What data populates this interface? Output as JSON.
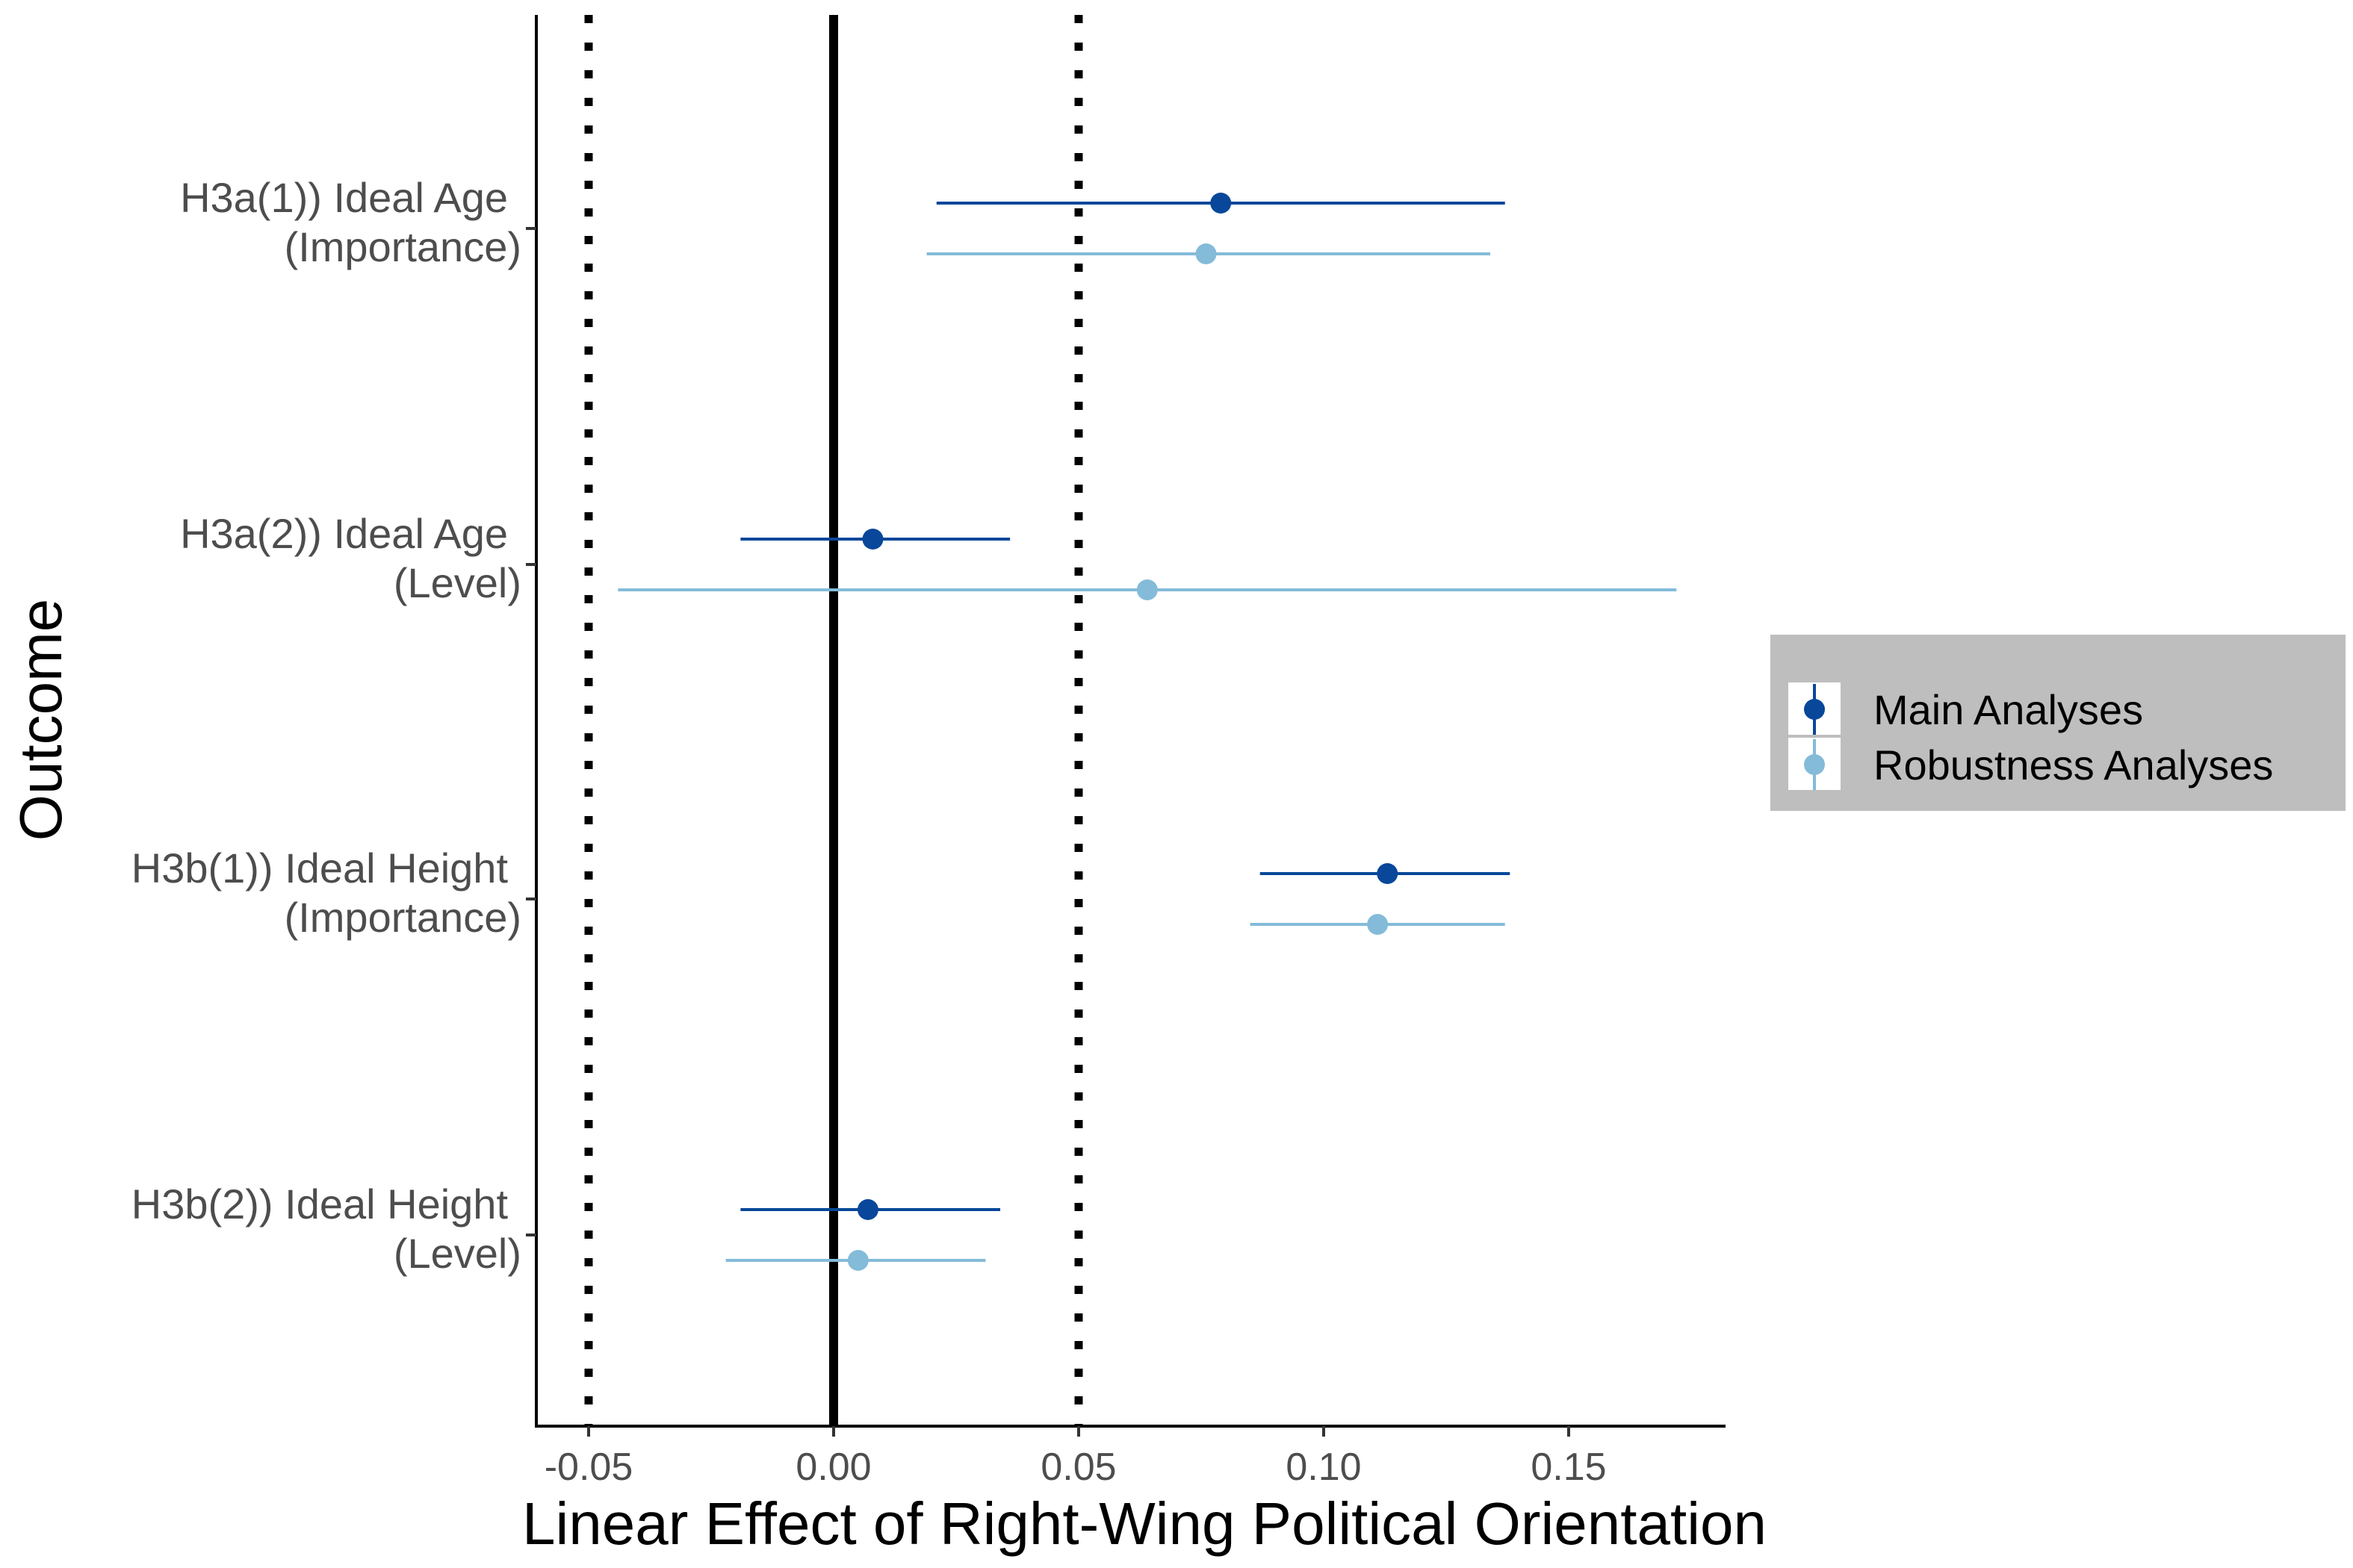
{
  "chart_data": {
    "type": "scatter",
    "subtype": "forest-plot (point estimates with confidence intervals)",
    "title": "",
    "xlabel": "Linear Effect of Right-Wing Political Orientation",
    "ylabel": "Outcome",
    "xlim": [
      -0.062,
      0.183
    ],
    "xticks": [
      -0.05,
      0.0,
      0.05,
      0.1,
      0.15
    ],
    "xtick_labels": [
      "-0.05",
      "0.00",
      "0.05",
      "0.10",
      "0.15"
    ],
    "reference_lines": [
      {
        "x": -0.05,
        "style": "dotted"
      },
      {
        "x": 0.0,
        "style": "solid"
      },
      {
        "x": 0.05,
        "style": "dotted"
      }
    ],
    "categories": [
      {
        "line1": "H3a(1)) Ideal Age",
        "line2": "(Importance)"
      },
      {
        "line1": "H3a(2)) Ideal Age",
        "line2": "(Level)"
      },
      {
        "line1": "H3b(1)) Ideal Height",
        "line2": "(Importance)"
      },
      {
        "line1": "H3b(2)) Ideal Height",
        "line2": "(Level)"
      }
    ],
    "series": [
      {
        "name": "Main Analyses",
        "color": "#08479a",
        "points": [
          {
            "estimate": 0.079,
            "lower": 0.021,
            "upper": 0.137
          },
          {
            "estimate": 0.008,
            "lower": -0.019,
            "upper": 0.036
          },
          {
            "estimate": 0.113,
            "lower": 0.087,
            "upper": 0.138
          },
          {
            "estimate": 0.007,
            "lower": -0.019,
            "upper": 0.034
          }
        ]
      },
      {
        "name": "Robustness Analyses",
        "color": "#84bbd9",
        "points": [
          {
            "estimate": 0.076,
            "lower": 0.019,
            "upper": 0.134
          },
          {
            "estimate": 0.064,
            "lower": -0.044,
            "upper": 0.172
          },
          {
            "estimate": 0.111,
            "lower": 0.085,
            "upper": 0.137
          },
          {
            "estimate": 0.005,
            "lower": -0.022,
            "upper": 0.031
          }
        ]
      }
    ],
    "grid": false,
    "legend": {
      "position": "right",
      "background": "#bebebe"
    }
  }
}
